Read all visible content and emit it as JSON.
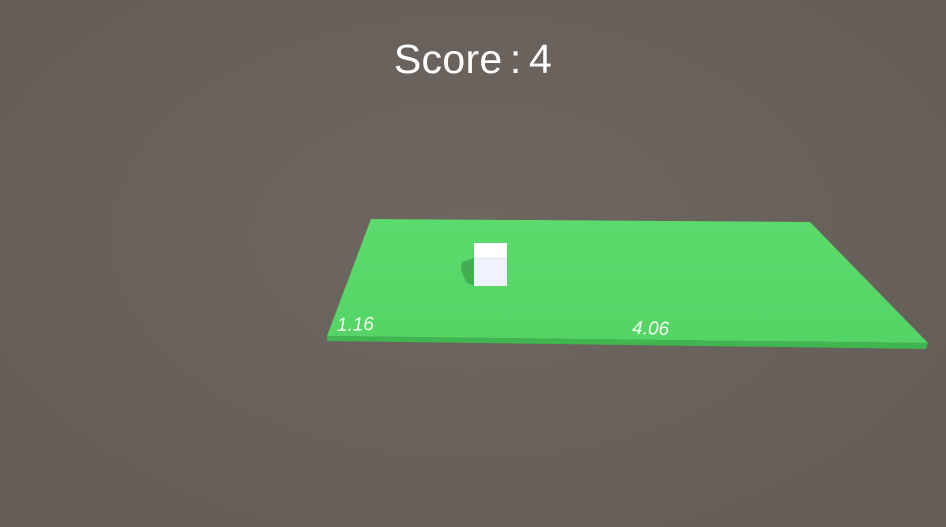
{
  "hud": {
    "score_label": "Score",
    "separator": ":",
    "score_value": "4"
  },
  "platform": {
    "color": "#59d96a",
    "edge_color": "#3fb64f",
    "left_marker": "1.16",
    "right_marker": "4.06"
  },
  "player": {
    "color": "#f5f9ff"
  },
  "background_color": "#6a625c"
}
